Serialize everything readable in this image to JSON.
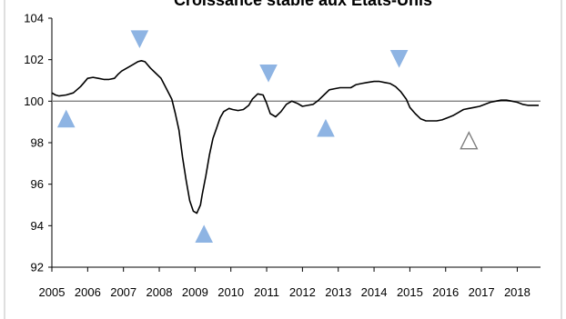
{
  "chart_data": {
    "type": "line",
    "title": "Croissance stable aux Etats-Unis",
    "xlabel": "",
    "ylabel": "",
    "xlim": [
      2005.0,
      2018.65
    ],
    "ylim": [
      92,
      104
    ],
    "y_ticks": [
      92,
      94,
      96,
      98,
      100,
      102,
      104
    ],
    "x_tick_labels": [
      "2005",
      "2006",
      "2007",
      "2008",
      "2009",
      "2010",
      "2011",
      "2012",
      "2013",
      "2014",
      "2015",
      "2016",
      "2017",
      "2018"
    ],
    "reference_line": 100,
    "grid": false,
    "legend": "none",
    "line_color": "#000000",
    "series": [
      {
        "x": [
          2005.0,
          2005.1,
          2005.2,
          2005.4,
          2005.6,
          2005.8,
          2005.9,
          2006.0,
          2006.15,
          2006.3,
          2006.45,
          2006.6,
          2006.75,
          2006.85,
          2006.95,
          2007.1,
          2007.25,
          2007.4,
          2007.5,
          2007.6,
          2007.75,
          2007.9,
          2008.05,
          2008.2,
          2008.35,
          2008.45,
          2008.55,
          2008.65,
          2008.75,
          2008.85,
          2008.95,
          2009.05,
          2009.15,
          2009.2,
          2009.3,
          2009.4,
          2009.5,
          2009.6,
          2009.7,
          2009.8,
          2009.95,
          2010.05,
          2010.2,
          2010.35,
          2010.5,
          2010.6,
          2010.75,
          2010.9,
          2011.0,
          2011.1,
          2011.25,
          2011.4,
          2011.55,
          2011.7,
          2011.85,
          2012.0,
          2012.15,
          2012.3,
          2012.45,
          2012.6,
          2012.75,
          2012.9,
          2013.05,
          2013.2,
          2013.35,
          2013.5,
          2013.65,
          2013.8,
          2014.0,
          2014.15,
          2014.3,
          2014.45,
          2014.6,
          2014.75,
          2014.9,
          2015.0,
          2015.15,
          2015.3,
          2015.45,
          2015.6,
          2015.75,
          2015.9,
          2016.05,
          2016.2,
          2016.35,
          2016.5,
          2016.65,
          2016.8,
          2016.95,
          2017.1,
          2017.25,
          2017.4,
          2017.55,
          2017.7,
          2017.85,
          2018.0,
          2018.15,
          2018.3,
          2018.45,
          2018.6
        ],
        "y": [
          100.4,
          100.3,
          100.25,
          100.3,
          100.4,
          100.7,
          100.9,
          101.1,
          101.15,
          101.1,
          101.05,
          101.05,
          101.1,
          101.3,
          101.45,
          101.6,
          101.75,
          101.9,
          101.95,
          101.9,
          101.6,
          101.35,
          101.1,
          100.6,
          100.1,
          99.4,
          98.6,
          97.3,
          96.2,
          95.2,
          94.7,
          94.6,
          95.0,
          95.5,
          96.4,
          97.4,
          98.2,
          98.7,
          99.2,
          99.5,
          99.65,
          99.6,
          99.55,
          99.6,
          99.8,
          100.1,
          100.35,
          100.3,
          99.9,
          99.4,
          99.25,
          99.5,
          99.85,
          100.0,
          99.9,
          99.75,
          99.8,
          99.85,
          100.05,
          100.3,
          100.55,
          100.6,
          100.65,
          100.65,
          100.65,
          100.8,
          100.85,
          100.9,
          100.95,
          100.95,
          100.9,
          100.85,
          100.7,
          100.45,
          100.1,
          99.7,
          99.4,
          99.15,
          99.05,
          99.05,
          99.05,
          99.1,
          99.2,
          99.3,
          99.45,
          99.6,
          99.65,
          99.7,
          99.75,
          99.85,
          99.95,
          100.0,
          100.05,
          100.05,
          100.0,
          99.95,
          99.85,
          99.8,
          99.8,
          99.8
        ]
      }
    ],
    "markers": [
      {
        "x": 2005.4,
        "y": 99.15,
        "direction": "up",
        "color": "#8eb4e3"
      },
      {
        "x": 2007.45,
        "y": 103.0,
        "direction": "down",
        "color": "#8eb4e3"
      },
      {
        "x": 2009.25,
        "y": 93.6,
        "direction": "up",
        "color": "#8eb4e3"
      },
      {
        "x": 2011.05,
        "y": 101.35,
        "direction": "down",
        "color": "#8eb4e3"
      },
      {
        "x": 2012.65,
        "y": 98.7,
        "direction": "up",
        "color": "#8eb4e3"
      },
      {
        "x": 2014.7,
        "y": 102.05,
        "direction": "down",
        "color": "#8eb4e3"
      },
      {
        "x": 2016.65,
        "y": 98.1,
        "direction": "up",
        "color": "#ffffff",
        "outline": "#7f7f7f"
      }
    ]
  }
}
